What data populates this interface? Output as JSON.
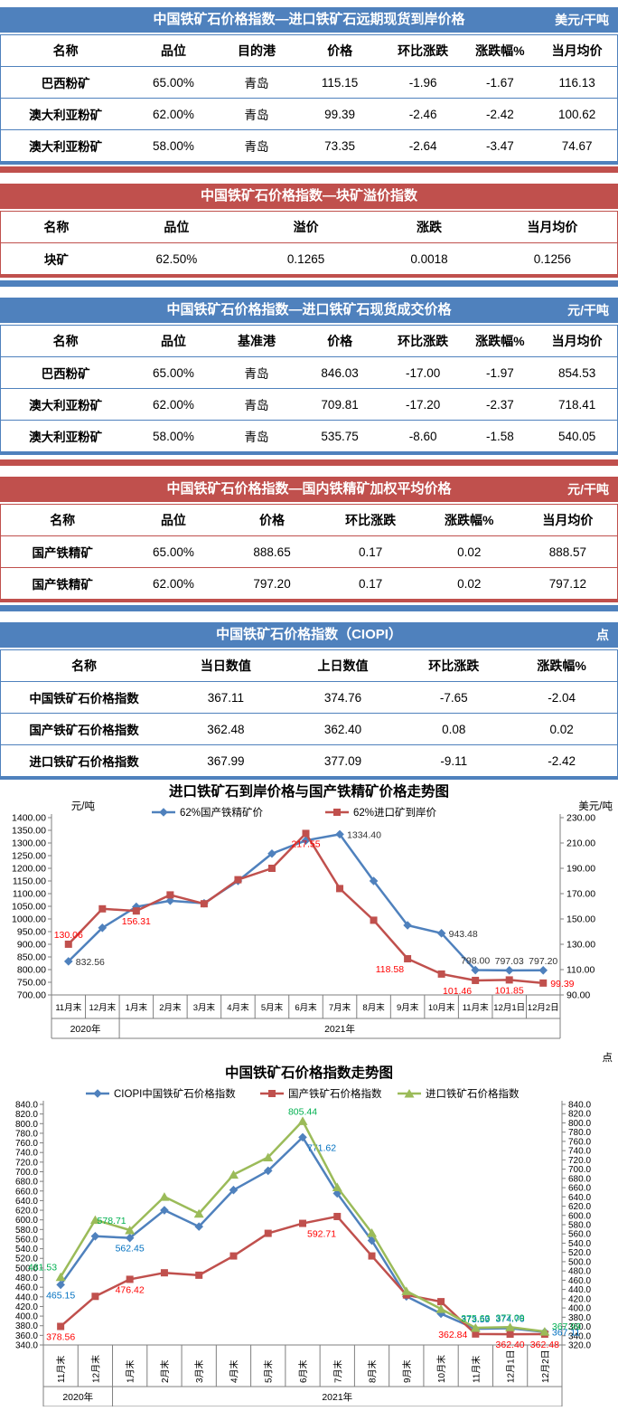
{
  "tables": [
    {
      "id": "import-forward-cfr",
      "theme": "blue",
      "top_strip": false,
      "title": "中国铁矿石价格指数—进口铁矿石远期现货到岸价格",
      "unit": "美元/干吨",
      "headers": [
        "名称",
        "品位",
        "目的港",
        "价格",
        "环比涨跌",
        "涨跌幅%",
        "当月均价"
      ],
      "rows": [
        [
          "巴西粉矿",
          "65.00%",
          "青岛",
          "115.15",
          "-1.96",
          "-1.67",
          "116.13"
        ],
        [
          "澳大利亚粉矿",
          "62.00%",
          "青岛",
          "99.39",
          "-2.46",
          "-2.42",
          "100.62"
        ],
        [
          "澳大利亚粉矿",
          "58.00%",
          "青岛",
          "73.35",
          "-2.64",
          "-3.47",
          "74.67"
        ]
      ]
    },
    {
      "id": "lump-premium",
      "theme": "red",
      "top_strip": true,
      "title": "中国铁矿石价格指数—块矿溢价指数",
      "unit": "",
      "headers": [
        "名称",
        "品位",
        "溢价",
        "涨跌",
        "当月均价"
      ],
      "rows": [
        [
          "块矿",
          "62.50%",
          "0.1265",
          "0.0018",
          "0.1256"
        ]
      ]
    },
    {
      "id": "import-spot-traded",
      "theme": "blue",
      "top_strip": true,
      "title": "中国铁矿石价格指数—进口铁矿石现货成交价格",
      "unit": "元/干吨",
      "headers": [
        "名称",
        "品位",
        "基准港",
        "价格",
        "环比涨跌",
        "涨跌幅%",
        "当月均价"
      ],
      "rows": [
        [
          "巴西粉矿",
          "65.00%",
          "青岛",
          "846.03",
          "-17.00",
          "-1.97",
          "854.53"
        ],
        [
          "澳大利亚粉矿",
          "62.00%",
          "青岛",
          "709.81",
          "-17.20",
          "-2.37",
          "718.41"
        ],
        [
          "澳大利亚粉矿",
          "58.00%",
          "青岛",
          "535.75",
          "-8.60",
          "-1.58",
          "540.05"
        ]
      ]
    },
    {
      "id": "domestic-concentrate",
      "theme": "red",
      "top_strip": true,
      "title": "中国铁矿石价格指数—国内铁精矿加权平均价格",
      "unit": "元/干吨",
      "headers": [
        "名称",
        "品位",
        "价格",
        "环比涨跌",
        "涨跌幅%",
        "当月均价"
      ],
      "rows": [
        [
          "国产铁精矿",
          "65.00%",
          "888.65",
          "0.17",
          "0.02",
          "888.57"
        ],
        [
          "国产铁精矿",
          "62.00%",
          "797.20",
          "0.17",
          "0.02",
          "797.12"
        ]
      ]
    },
    {
      "id": "ciopi-index",
      "theme": "blue",
      "top_strip": true,
      "title": "中国铁矿石价格指数（CIOPI）",
      "unit": "点",
      "headers": [
        "名称",
        "当日数值",
        "上日数值",
        "环比涨跌",
        "涨跌幅%"
      ],
      "rows": [
        [
          "中国铁矿石价格指数",
          "367.11",
          "374.76",
          "-7.65",
          "-2.04"
        ],
        [
          "国产铁矿石价格指数",
          "362.48",
          "362.40",
          "0.08",
          "0.02"
        ],
        [
          "进口铁矿石价格指数",
          "367.99",
          "377.09",
          "-9.11",
          "-2.42"
        ]
      ]
    }
  ],
  "chart_data": [
    {
      "type": "line",
      "title": "进口铁矿石到岸价格与国产铁精矿价格走势图",
      "legend_position": "top",
      "grid": false,
      "x_label_rotated": false,
      "left_axis": {
        "unit": "元/吨",
        "min": 700,
        "max": 1400,
        "step": 50,
        "decimals": 2
      },
      "right_axis": {
        "unit": "美元/吨",
        "min": 90,
        "max": 230,
        "step": 20,
        "decimals": 2
      },
      "categories": [
        "11月末",
        "12月末",
        "1月末",
        "2月末",
        "3月末",
        "4月末",
        "5月末",
        "6月末",
        "7月末",
        "8月末",
        "9月末",
        "10月末",
        "11月末",
        "12月1日",
        "12月2日"
      ],
      "year_groups": [
        {
          "label": "2020年",
          "span": 2
        },
        {
          "label": "2021年",
          "span": 13
        }
      ],
      "series": [
        {
          "name": "62%国产铁精矿价",
          "color": "#4F81BD",
          "marker": "diamond",
          "axis": "left",
          "label_color": "#333333",
          "values": [
            832.56,
            965,
            1048,
            1072,
            1062,
            1150,
            1258,
            1310,
            1334.4,
            1150,
            975,
            943.48,
            798.0,
            797.03,
            797.2
          ],
          "point_labels": [
            {
              "i": 0,
              "text": "832.56",
              "pos": "right"
            },
            {
              "i": 8,
              "text": "1334.40",
              "pos": "right"
            },
            {
              "i": 11,
              "text": "943.48",
              "pos": "right"
            },
            {
              "i": 12,
              "text": "798.00",
              "pos": "above"
            },
            {
              "i": 13,
              "text": "797.03",
              "pos": "above"
            },
            {
              "i": 14,
              "text": "797.20",
              "pos": "above"
            }
          ]
        },
        {
          "name": "62%进口矿到岸价",
          "color": "#C0504D",
          "marker": "square",
          "axis": "right",
          "label_color": "#FF0000",
          "values": [
            130.06,
            158,
            156.31,
            169,
            162,
            181,
            190,
            217.55,
            174,
            149,
            118.58,
            106.5,
            101.46,
            101.85,
            99.39
          ],
          "point_labels": [
            {
              "i": 0,
              "text": "130.06",
              "pos": "above"
            },
            {
              "i": 2,
              "text": "156.31",
              "pos": "below"
            },
            {
              "i": 7,
              "text": "217.55",
              "pos": "below"
            },
            {
              "i": 10,
              "text": "118.58",
              "pos": "below-left"
            },
            {
              "i": 12,
              "text": "101.46",
              "pos": "below-left"
            },
            {
              "i": 13,
              "text": "101.85",
              "pos": "below"
            },
            {
              "i": 14,
              "text": "99.39",
              "pos": "right"
            }
          ]
        }
      ]
    },
    {
      "type": "line",
      "title": "中国铁矿石价格指数走势图",
      "legend_position": "top",
      "grid": false,
      "x_label_rotated": true,
      "left_axis": {
        "unit": "",
        "min": 340,
        "max": 840,
        "step": 20,
        "decimals": 1
      },
      "right_axis": {
        "unit": "点",
        "min": 320,
        "max": 840,
        "step": 20,
        "decimals": 1
      },
      "categories": [
        "11月末",
        "12月末",
        "1月末",
        "2月末",
        "3月末",
        "4月末",
        "5月末",
        "6月末",
        "7月末",
        "8月末",
        "9月末",
        "10月末",
        "11月末",
        "12月1日",
        "12月2日"
      ],
      "year_groups": [
        {
          "label": "2020年",
          "span": 2
        },
        {
          "label": "2021年",
          "span": 13
        }
      ],
      "series": [
        {
          "name": "CIOPI中国铁矿石价格指数",
          "color": "#4F81BD",
          "marker": "diamond",
          "axis": "left",
          "label_color": "#0070C0",
          "values": [
            465.15,
            566,
            562.45,
            620,
            586,
            662,
            702,
            771.62,
            655,
            557,
            441,
            405,
            373.59,
            374.76,
            367.11
          ],
          "point_labels": [
            {
              "i": 0,
              "text": "465.15",
              "pos": "below"
            },
            {
              "i": 2,
              "text": "562.45",
              "pos": "below"
            },
            {
              "i": 7,
              "text": "771.62",
              "pos": "below-right"
            },
            {
              "i": 12,
              "text": "373.59",
              "pos": "above"
            },
            {
              "i": 13,
              "text": "374.76",
              "pos": "above"
            },
            {
              "i": 14,
              "text": "367.11",
              "pos": "right"
            }
          ]
        },
        {
          "name": "国产铁矿石价格指数",
          "color": "#C0504D",
          "marker": "square",
          "axis": "left",
          "label_color": "#FF0000",
          "values": [
            378.56,
            441,
            476.42,
            490,
            485,
            525,
            572,
            592.71,
            607,
            525,
            444,
            430,
            362.84,
            362.4,
            362.48
          ],
          "point_labels": [
            {
              "i": 0,
              "text": "378.56",
              "pos": "below"
            },
            {
              "i": 2,
              "text": "476.42",
              "pos": "below"
            },
            {
              "i": 7,
              "text": "592.71",
              "pos": "below-right"
            },
            {
              "i": 12,
              "text": "362.84",
              "pos": "left"
            },
            {
              "i": 13,
              "text": "362.40",
              "pos": "below"
            },
            {
              "i": 14,
              "text": "362.48",
              "pos": "below"
            }
          ]
        },
        {
          "name": "进口铁矿石价格指数",
          "color": "#9BBB59",
          "marker": "triangle",
          "axis": "left",
          "label_color": "#00B050",
          "values": [
            481.53,
            600,
            578.71,
            648,
            613,
            694,
            730,
            805.44,
            668,
            573,
            452,
            415,
            375.63,
            377.09,
            367.99
          ],
          "point_labels": [
            {
              "i": 0,
              "text": "481.53",
              "pos": "above-left"
            },
            {
              "i": 2,
              "text": "578.71",
              "pos": "above-left"
            },
            {
              "i": 7,
              "text": "805.44",
              "pos": "above"
            },
            {
              "i": 12,
              "text": "375.63",
              "pos": "above"
            },
            {
              "i": 13,
              "text": "377.09",
              "pos": "above"
            },
            {
              "i": 14,
              "text": "367.99",
              "pos": "right-above"
            }
          ]
        }
      ]
    }
  ]
}
